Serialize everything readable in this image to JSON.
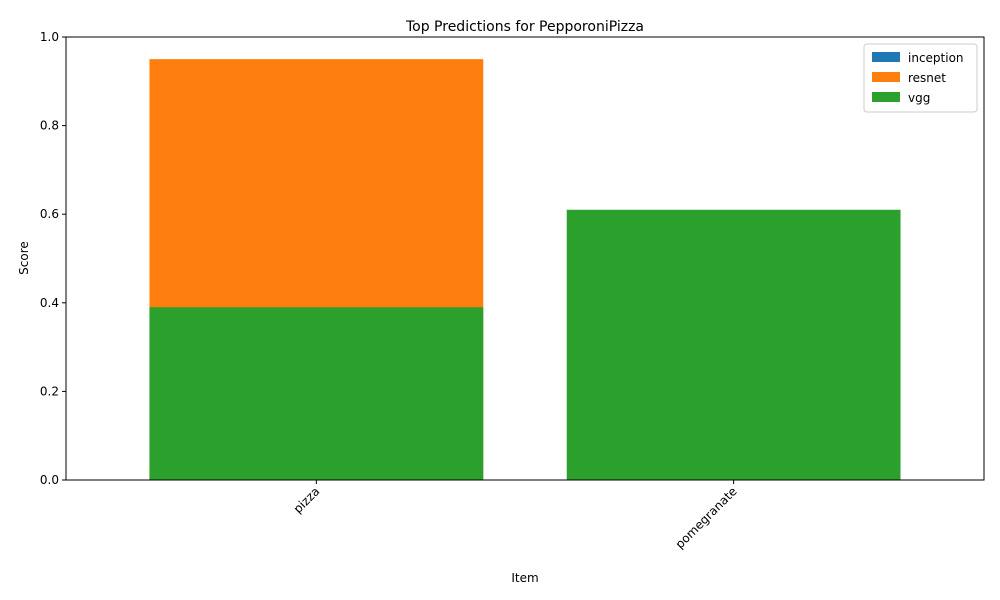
{
  "chart_data": {
    "type": "bar",
    "stacked": false,
    "title": "Top Predictions for PepporoniPizza",
    "xlabel": "Item",
    "ylabel": "Score",
    "categories": [
      "pizza",
      "pomegranate"
    ],
    "series": [
      {
        "name": "inception",
        "color": "#1f77b4",
        "values": [
          0,
          0
        ]
      },
      {
        "name": "resnet",
        "color": "#ff7f0e",
        "values": [
          0.95,
          0
        ]
      },
      {
        "name": "vgg",
        "color": "#2ca02c",
        "values": [
          0.39,
          0.61
        ]
      }
    ],
    "ylim": [
      0,
      1.0
    ],
    "yticks": [
      "0.0",
      "0.2",
      "0.4",
      "0.6",
      "0.8",
      "1.0"
    ],
    "grid": false,
    "legend_position": "top-right"
  }
}
